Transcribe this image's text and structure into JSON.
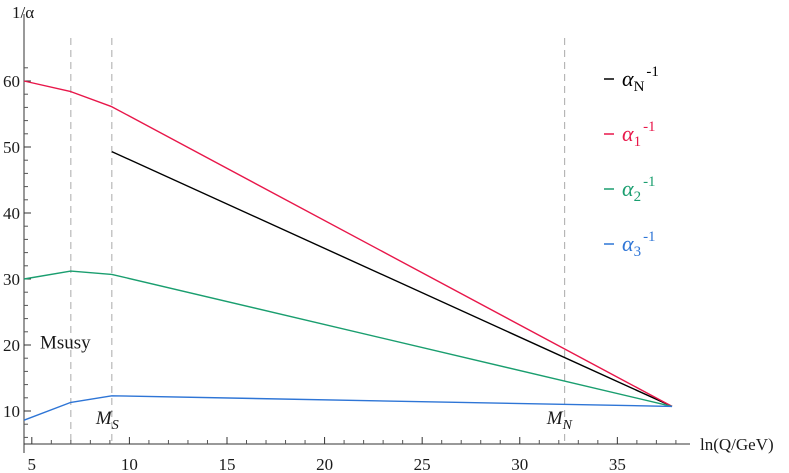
{
  "chart_data": {
    "type": "line",
    "title": "",
    "xlabel": "ln(Q/GeV)",
    "ylabel": "1/α",
    "xlim": [
      4.6,
      38.5
    ],
    "ylim": [
      5.0,
      63.0
    ],
    "xticks": [
      5,
      10,
      15,
      20,
      25,
      30,
      35
    ],
    "yticks": [
      10,
      20,
      30,
      40,
      50,
      60
    ],
    "grid": false,
    "legend_position": "right",
    "series": [
      {
        "name": "α_N^-1",
        "color": "#000000",
        "x": [
          9.1,
          37.8
        ],
        "y": [
          49.3,
          10.7
        ]
      },
      {
        "name": "α_1^-1",
        "color": "#e8174a",
        "x": [
          4.6,
          7.0,
          9.1,
          37.8
        ],
        "y": [
          60.0,
          58.4,
          56.1,
          10.7
        ]
      },
      {
        "name": "α_2^-1",
        "color": "#1a9e6f",
        "x": [
          4.6,
          7.0,
          9.1,
          37.8
        ],
        "y": [
          30.0,
          31.2,
          30.7,
          10.7
        ]
      },
      {
        "name": "α_3^-1",
        "color": "#2e75d6",
        "x": [
          4.6,
          7.0,
          9.1,
          37.8
        ],
        "y": [
          8.6,
          11.3,
          12.3,
          10.7
        ]
      }
    ],
    "vlines": [
      7.0,
      9.1,
      32.3
    ],
    "annotations": [
      {
        "text": "Msusy",
        "x": 6.8,
        "y": 19.5
      },
      {
        "text": "M_S",
        "x": 8.9,
        "y": 8.0
      },
      {
        "text": "M_N",
        "x": 32.0,
        "y": 8.0
      }
    ]
  }
}
